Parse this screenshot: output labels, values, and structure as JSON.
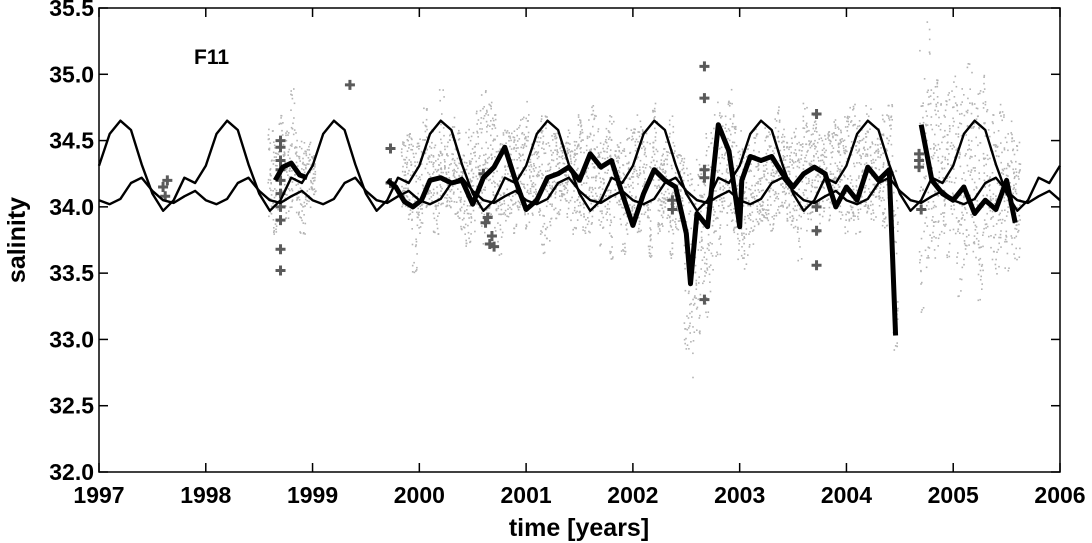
{
  "chart_data": {
    "type": "line",
    "title": "",
    "annotation": "F11",
    "xlabel": "time [years]",
    "ylabel": "salinity",
    "xlim": [
      1997,
      2006
    ],
    "ylim": [
      32.0,
      35.5
    ],
    "xticks": [
      1997,
      1998,
      1999,
      2000,
      2001,
      2002,
      2003,
      2004,
      2005,
      2006
    ],
    "yticks": [
      "32.0",
      "32.5",
      "33.0",
      "33.5",
      "34.0",
      "34.5",
      "35.0",
      "35.5"
    ],
    "grid": false,
    "legend": "none",
    "colors": {
      "observations": "#b4b4b4",
      "bottle_samples": "#5a5a5a",
      "model_curves": "#000000"
    },
    "series": [
      {
        "style": "thin-line",
        "description_key": "seasonal_cycle_a",
        "x": [
          1997.0,
          1997.1,
          1997.2,
          1997.3,
          1997.4,
          1997.5,
          1997.6,
          1997.7,
          1997.8,
          1997.9,
          1998.0,
          1998.1,
          1998.2,
          1998.3,
          1998.4,
          1998.5,
          1998.6,
          1998.7,
          1998.8,
          1998.9,
          1999.0,
          1999.1,
          1999.2,
          1999.3,
          1999.4,
          1999.5,
          1999.6,
          1999.7,
          1999.8,
          1999.9,
          2000.0,
          2000.1,
          2000.2,
          2000.3,
          2000.4,
          2000.5,
          2000.6,
          2000.7,
          2000.8,
          2000.9,
          2001.0,
          2001.1,
          2001.2,
          2001.3,
          2001.4,
          2001.5,
          2001.6,
          2001.7,
          2001.8,
          2001.9,
          2002.0,
          2002.1,
          2002.2,
          2002.3,
          2002.4,
          2002.5,
          2002.6,
          2002.7,
          2002.8,
          2002.9,
          2003.0,
          2003.1,
          2003.2,
          2003.3,
          2003.4,
          2003.5,
          2003.6,
          2003.7,
          2003.8,
          2003.9,
          2004.0,
          2004.1,
          2004.2,
          2004.3,
          2004.4,
          2004.5,
          2004.6,
          2004.7,
          2004.8,
          2004.9,
          2005.0,
          2005.1,
          2005.2,
          2005.3,
          2005.4,
          2005.5,
          2005.6,
          2005.7,
          2005.8,
          2005.9,
          2006.0
        ],
        "y": [
          34.31,
          34.55,
          34.65,
          34.58,
          34.32,
          34.1,
          33.97,
          34.05,
          34.22,
          34.18,
          34.31,
          34.55,
          34.65,
          34.58,
          34.32,
          34.1,
          33.97,
          34.05,
          34.22,
          34.18,
          34.31,
          34.55,
          34.65,
          34.58,
          34.32,
          34.1,
          33.97,
          34.05,
          34.22,
          34.18,
          34.31,
          34.55,
          34.65,
          34.58,
          34.32,
          34.1,
          33.97,
          34.05,
          34.22,
          34.18,
          34.31,
          34.55,
          34.65,
          34.58,
          34.32,
          34.1,
          33.97,
          34.05,
          34.22,
          34.18,
          34.31,
          34.55,
          34.65,
          34.58,
          34.32,
          34.1,
          33.97,
          34.05,
          34.22,
          34.18,
          34.31,
          34.55,
          34.65,
          34.58,
          34.32,
          34.1,
          33.97,
          34.05,
          34.22,
          34.18,
          34.31,
          34.55,
          34.65,
          34.58,
          34.32,
          34.1,
          33.97,
          34.05,
          34.22,
          34.18,
          34.31,
          34.55,
          34.65,
          34.58,
          34.32,
          34.1,
          33.97,
          34.05,
          34.22,
          34.18,
          34.31
        ]
      },
      {
        "style": "thin-line",
        "description_key": "seasonal_cycle_b",
        "x": [
          1997.0,
          1997.1,
          1997.2,
          1997.3,
          1997.4,
          1997.5,
          1997.6,
          1997.7,
          1997.8,
          1997.9,
          1998.0,
          1998.1,
          1998.2,
          1998.3,
          1998.4,
          1998.5,
          1998.6,
          1998.7,
          1998.8,
          1998.9,
          1999.0,
          1999.1,
          1999.2,
          1999.3,
          1999.4,
          1999.5,
          1999.6,
          1999.7,
          1999.8,
          1999.9,
          2000.0,
          2000.1,
          2000.2,
          2000.3,
          2000.4,
          2000.5,
          2000.6,
          2000.7,
          2000.8,
          2000.9,
          2001.0,
          2001.1,
          2001.2,
          2001.3,
          2001.4,
          2001.5,
          2001.6,
          2001.7,
          2001.8,
          2001.9,
          2002.0,
          2002.1,
          2002.2,
          2002.3,
          2002.4,
          2002.5,
          2002.6,
          2002.7,
          2002.8,
          2002.9,
          2003.0,
          2003.1,
          2003.2,
          2003.3,
          2003.4,
          2003.5,
          2003.6,
          2003.7,
          2003.8,
          2003.9,
          2004.0,
          2004.1,
          2004.2,
          2004.3,
          2004.4,
          2004.5,
          2004.6,
          2004.7,
          2004.8,
          2004.9,
          2005.0,
          2005.1,
          2005.2,
          2005.3,
          2005.4,
          2005.5,
          2005.6,
          2005.7,
          2005.8,
          2005.9,
          2006.0
        ],
        "y": [
          34.05,
          34.02,
          34.06,
          34.18,
          34.22,
          34.12,
          34.05,
          34.03,
          34.08,
          34.12,
          34.05,
          34.02,
          34.06,
          34.18,
          34.22,
          34.12,
          34.05,
          34.03,
          34.08,
          34.12,
          34.05,
          34.02,
          34.06,
          34.18,
          34.22,
          34.12,
          34.05,
          34.03,
          34.08,
          34.12,
          34.05,
          34.02,
          34.06,
          34.18,
          34.22,
          34.12,
          34.05,
          34.03,
          34.08,
          34.12,
          34.05,
          34.02,
          34.06,
          34.18,
          34.22,
          34.12,
          34.05,
          34.03,
          34.08,
          34.12,
          34.05,
          34.02,
          34.06,
          34.18,
          34.22,
          34.12,
          34.05,
          34.03,
          34.08,
          34.12,
          34.05,
          34.02,
          34.06,
          34.18,
          34.22,
          34.12,
          34.05,
          34.03,
          34.08,
          34.12,
          34.05,
          34.02,
          34.06,
          34.18,
          34.22,
          34.12,
          34.05,
          34.03,
          34.08,
          34.12,
          34.05,
          34.02,
          34.06,
          34.18,
          34.22,
          34.12,
          34.05,
          34.03,
          34.08,
          34.12,
          34.05
        ]
      },
      {
        "style": "thick-line",
        "description_key": "monthly_mean",
        "segments": [
          {
            "x": [
              1998.65,
              1998.72,
              1998.8,
              1998.88,
              1998.95
            ],
            "y": [
              34.2,
              34.3,
              34.33,
              34.24,
              34.22
            ]
          },
          {
            "x": [
              1999.7,
              1999.78,
              1999.86,
              1999.94,
              2000.02,
              2000.1,
              2000.2,
              2000.3,
              2000.4,
              2000.5,
              2000.6,
              2000.7,
              2000.8,
              2000.9,
              2001.0,
              2001.1,
              2001.2,
              2001.3,
              2001.4,
              2001.5,
              2001.6,
              2001.7,
              2001.8,
              2001.9,
              2002.0,
              2002.1,
              2002.2,
              2002.3,
              2002.4,
              2002.5,
              2002.54,
              2002.6,
              2002.7,
              2002.8,
              2002.9,
              2003.0,
              2003.02,
              2003.1,
              2003.2,
              2003.3,
              2003.4,
              2003.5,
              2003.6,
              2003.7,
              2003.8,
              2003.9,
              2004.0,
              2004.1,
              2004.2,
              2004.3,
              2004.4,
              2004.46
            ],
            "y": [
              34.2,
              34.15,
              34.04,
              34.0,
              34.05,
              34.2,
              34.22,
              34.18,
              34.2,
              34.02,
              34.22,
              34.3,
              34.45,
              34.2,
              33.98,
              34.05,
              34.22,
              34.25,
              34.3,
              34.2,
              34.4,
              34.3,
              34.35,
              34.1,
              33.86,
              34.1,
              34.28,
              34.2,
              34.15,
              33.8,
              33.42,
              33.95,
              33.85,
              34.62,
              34.42,
              33.85,
              34.2,
              34.38,
              34.35,
              34.38,
              34.25,
              34.15,
              34.25,
              34.3,
              34.25,
              34.0,
              34.15,
              34.05,
              34.3,
              34.2,
              34.28,
              33.03
            ]
          },
          {
            "x": [
              2004.7,
              2004.8,
              2004.9,
              2005.0,
              2005.1,
              2005.2,
              2005.3,
              2005.4,
              2005.5,
              2005.58
            ],
            "y": [
              34.62,
              34.2,
              34.1,
              34.05,
              34.15,
              33.95,
              34.05,
              33.98,
              34.2,
              33.88
            ]
          }
        ]
      },
      {
        "style": "dots",
        "description_key": "continuous_observations",
        "x": [
          1998.6,
          1998.65,
          1998.7,
          1998.75,
          1998.8,
          1998.85,
          1998.9,
          1998.95,
          1999.0,
          1999.85,
          1999.9,
          1999.95,
          2000.0,
          2000.05,
          2000.1,
          2000.15,
          2000.2,
          2000.25,
          2000.3,
          2000.35,
          2000.4,
          2000.45,
          2000.5,
          2000.55,
          2000.6,
          2000.65,
          2000.7,
          2000.75,
          2000.8,
          2000.85,
          2000.9,
          2000.95,
          2001.0,
          2001.05,
          2001.1,
          2001.15,
          2001.2,
          2001.25,
          2001.3,
          2001.35,
          2001.4,
          2001.45,
          2001.5,
          2001.55,
          2001.6,
          2001.65,
          2001.7,
          2001.75,
          2001.8,
          2001.85,
          2001.9,
          2001.95,
          2002.0,
          2002.05,
          2002.1,
          2002.15,
          2002.2,
          2002.25,
          2002.3,
          2002.35,
          2002.4,
          2002.45,
          2002.5,
          2002.55,
          2002.6,
          2002.65,
          2002.7,
          2002.75,
          2002.8,
          2002.85,
          2002.9,
          2002.95,
          2003.0,
          2003.05,
          2003.1,
          2003.15,
          2003.2,
          2003.25,
          2003.3,
          2003.35,
          2003.4,
          2003.45,
          2003.5,
          2003.55,
          2003.6,
          2003.65,
          2003.7,
          2003.75,
          2003.8,
          2003.85,
          2003.9,
          2003.95,
          2004.0,
          2004.05,
          2004.1,
          2004.15,
          2004.2,
          2004.25,
          2004.3,
          2004.35,
          2004.4,
          2004.45,
          2004.7,
          2004.75,
          2004.8,
          2004.85,
          2004.9,
          2004.95,
          2005.0,
          2005.05,
          2005.1,
          2005.15,
          2005.2,
          2005.25,
          2005.3,
          2005.35,
          2005.4,
          2005.45,
          2005.5,
          2005.55,
          2005.6
        ],
        "ylow": [
          33.9,
          33.8,
          34.0,
          33.9,
          34.0,
          33.9,
          33.8,
          34.0,
          34.1,
          34.0,
          33.9,
          33.5,
          33.8,
          34.0,
          34.0,
          33.8,
          33.9,
          34.0,
          34.0,
          33.9,
          33.8,
          33.7,
          33.8,
          34.0,
          33.7,
          33.9,
          33.8,
          33.6,
          33.9,
          33.9,
          33.8,
          34.0,
          33.8,
          33.9,
          33.9,
          33.6,
          33.7,
          33.9,
          33.9,
          34.0,
          33.9,
          33.8,
          33.9,
          33.8,
          33.8,
          34.0,
          33.7,
          33.9,
          33.6,
          34.0,
          33.6,
          33.8,
          33.9,
          33.8,
          33.9,
          33.6,
          34.0,
          33.8,
          33.9,
          33.6,
          33.8,
          33.9,
          32.9,
          32.7,
          33.0,
          33.4,
          33.1,
          33.5,
          33.6,
          33.9,
          33.8,
          33.8,
          33.6,
          33.5,
          33.7,
          33.8,
          33.9,
          33.9,
          33.8,
          33.9,
          34.0,
          33.9,
          33.8,
          33.6,
          33.8,
          33.9,
          34.0,
          33.8,
          33.9,
          33.9,
          34.0,
          33.9,
          33.8,
          33.9,
          33.8,
          34.0,
          33.9,
          33.9,
          34.0,
          33.8,
          33.8,
          32.9,
          33.2,
          33.5,
          33.6,
          33.5,
          33.7,
          33.6,
          33.8,
          33.3,
          33.5,
          33.7,
          33.6,
          33.3,
          33.8,
          33.6,
          33.5,
          33.7,
          33.5,
          33.6,
          33.6
        ],
        "yhigh": [
          34.6,
          34.5,
          34.7,
          34.6,
          34.9,
          34.6,
          34.5,
          34.5,
          34.4,
          34.5,
          34.6,
          34.5,
          34.6,
          34.8,
          34.6,
          34.5,
          34.9,
          34.5,
          34.7,
          34.6,
          34.4,
          34.6,
          34.6,
          34.8,
          34.9,
          34.8,
          34.7,
          34.5,
          34.6,
          34.6,
          34.6,
          34.7,
          34.8,
          34.5,
          34.6,
          34.8,
          34.7,
          34.7,
          34.6,
          34.5,
          34.6,
          34.5,
          34.7,
          34.6,
          34.8,
          34.7,
          34.5,
          34.6,
          34.7,
          34.5,
          34.5,
          34.6,
          34.6,
          34.7,
          34.7,
          34.5,
          34.8,
          34.4,
          34.5,
          34.7,
          34.5,
          34.4,
          34.3,
          34.3,
          34.4,
          34.3,
          34.6,
          34.8,
          34.8,
          34.7,
          34.9,
          34.7,
          34.6,
          34.5,
          34.5,
          34.6,
          34.4,
          34.6,
          34.6,
          34.8,
          34.6,
          34.5,
          34.6,
          34.5,
          34.8,
          34.6,
          34.7,
          34.6,
          34.6,
          34.6,
          34.7,
          34.6,
          34.7,
          34.8,
          34.7,
          34.6,
          34.8,
          34.5,
          34.6,
          34.7,
          34.8,
          34.4,
          35.2,
          35.4,
          34.9,
          35.0,
          34.8,
          34.9,
          35.0,
          34.8,
          34.9,
          35.1,
          34.8,
          34.9,
          35.0,
          34.7,
          34.6,
          34.8,
          34.6,
          34.7,
          34.5
        ]
      },
      {
        "style": "crosses",
        "description_key": "bottle_samples",
        "x": [
          1997.6,
          1997.62,
          1997.64,
          1998.7,
          1998.7,
          1998.7,
          1998.7,
          1998.7,
          1998.7,
          1998.7,
          1998.7,
          1998.7,
          1998.7,
          1999.35,
          1999.73,
          1999.73,
          2000.6,
          2000.62,
          2000.64,
          2000.66,
          2000.68,
          2000.7,
          2002.37,
          2002.37,
          2002.67,
          2002.67,
          2002.67,
          2002.67,
          2002.67,
          2003.72,
          2003.72,
          2003.72,
          2003.72,
          2004.68,
          2004.68,
          2004.68,
          2004.7
        ],
        "y": [
          34.15,
          34.08,
          34.2,
          34.5,
          34.45,
          34.35,
          34.28,
          34.2,
          34.1,
          34.0,
          33.9,
          33.68,
          33.52,
          34.92,
          34.44,
          34.18,
          34.25,
          33.88,
          33.92,
          33.72,
          33.78,
          33.7,
          34.05,
          33.98,
          35.06,
          34.82,
          34.28,
          34.22,
          33.3,
          34.7,
          34.0,
          33.82,
          33.56,
          34.4,
          34.35,
          34.3,
          33.98
        ]
      }
    ]
  }
}
